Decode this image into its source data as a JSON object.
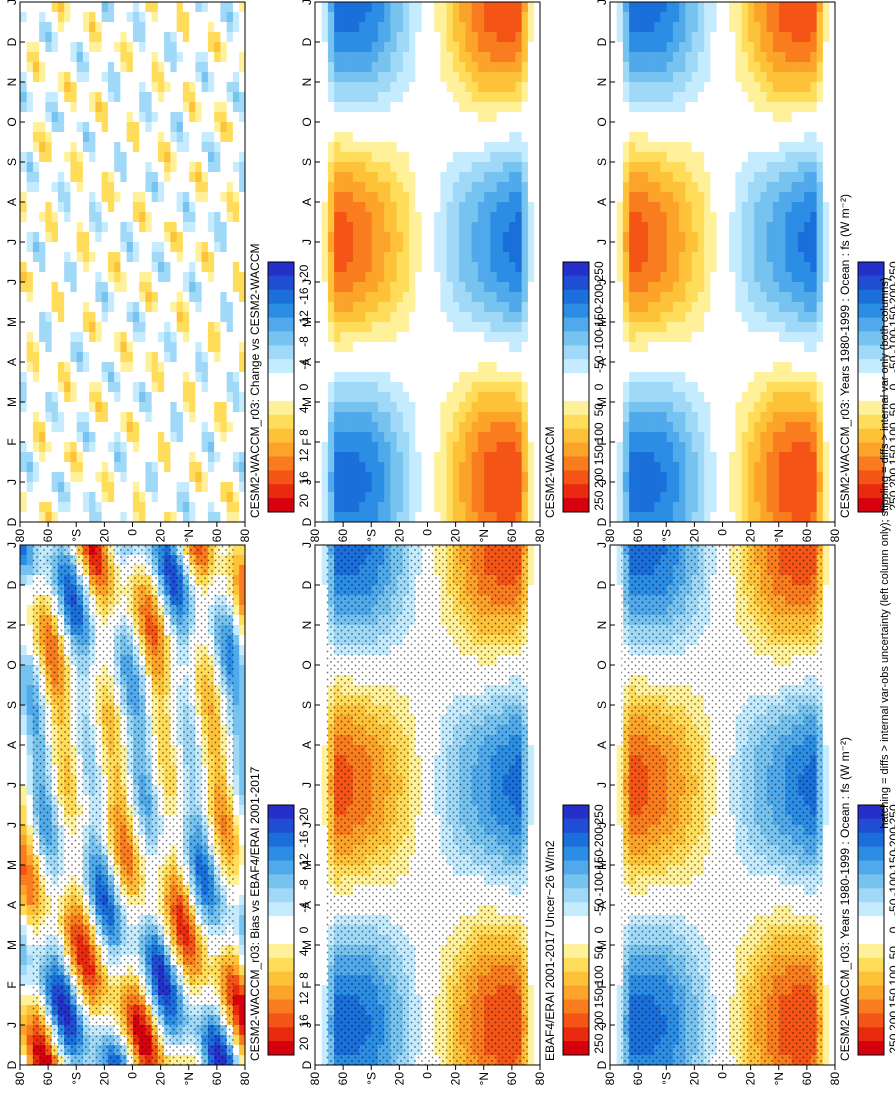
{
  "figure": {
    "rotation": "90-degrees-counterclockwise",
    "footnote": "hatching = diffs > internal var-obs uncertainty (left column only); stippling = diffs > internal var only (both columns)"
  },
  "months": [
    "D",
    "J",
    "F",
    "M",
    "A",
    "M",
    "J",
    "J",
    "A",
    "S",
    "O",
    "N",
    "D",
    "J"
  ],
  "lat_ticks": [
    "80",
    "60",
    "°N",
    "20",
    "0",
    "20",
    "°S",
    "60",
    "80"
  ],
  "colors": {
    "full": [
      "#d7000f",
      "#ea2a0f",
      "#f45516",
      "#f97d1e",
      "#fca329",
      "#fec239",
      "#ffdc5a",
      "#fff09a",
      "#ffffff",
      "#ffffff",
      "#c5ebff",
      "#9fd9f7",
      "#76c3f0",
      "#4fa9ea",
      "#2b8de3",
      "#1b6fdb",
      "#1f4dd4",
      "#2430c9"
    ],
    "diff": [
      "#d7000f",
      "#ea2a0f",
      "#f45516",
      "#f97d1e",
      "#fca329",
      "#fec239",
      "#ffdc5a",
      "#fff09a",
      "#ffffff",
      "#ffffff",
      "#c5ebff",
      "#9fd9f7",
      "#76c3f0",
      "#4fa9ea",
      "#2b8de3",
      "#1b6fdb",
      "#1f4dd4",
      "#2430c9"
    ]
  },
  "colorbar_full": [
    "250",
    "200",
    "150",
    "100",
    "50",
    "0",
    "-50",
    "-100",
    "-150",
    "-200",
    "-250"
  ],
  "colorbar_diff": [
    "20",
    "16",
    "12",
    "8",
    "4",
    "0",
    "-4",
    "-8",
    "-12",
    "-16",
    "-20"
  ],
  "panels": [
    {
      "id": "top-left",
      "title": "CESM2-WACCM_r03: Years 1980-1999 : Ocean : fs (W m⁻²)"
    },
    {
      "id": "top-right",
      "title": "CESM2-WACCM_r03: Years 1980-1999 : Ocean : fs (W m⁻²)"
    },
    {
      "id": "middle-left",
      "title": "EBAF4/ERAI 2001-2017 Uncer~26 W/m2"
    },
    {
      "id": "middle-right",
      "title": "CESM2-WACCM"
    },
    {
      "id": "bottom-left",
      "title": "CESM2-WACCM_r03: Bias vs EBAF4/ERAI 2001-2017"
    },
    {
      "id": "bottom-right",
      "title": "CESM2-WACCM_r03: Change vs CESM2-WACCM"
    }
  ],
  "chart_data": [
    {
      "type": "heatmap",
      "title": "CESM2-WACCM_r03: Years 1980-1999 : Ocean : fs (W m⁻²)",
      "variable": "fs (W m⁻²), ocean, zonal-mean annual cycle",
      "x": [
        "D",
        "J",
        "F",
        "M",
        "A",
        "M",
        "J",
        "J",
        "A",
        "S",
        "O",
        "N",
        "D",
        "J"
      ],
      "y": [
        "80N",
        "60N",
        "40N",
        "20N",
        "0",
        "20S",
        "40S",
        "60S",
        "80S"
      ],
      "clim": [
        -250,
        250
      ],
      "colorbar_ticks": [
        250,
        200,
        150,
        100,
        50,
        0,
        -50,
        -100,
        -150,
        -200,
        -250
      ],
      "peak_values": {
        "north_winter_max": 220,
        "north_summer_min": -170,
        "south_winter_max": 170,
        "south_summer_min": -150
      }
    },
    {
      "type": "heatmap",
      "title": "EBAF4/ERAI 2001-2017 Uncer~26 W/m2",
      "variable": "observed fs (W m⁻²)",
      "x": [
        "D",
        "J",
        "F",
        "M",
        "A",
        "M",
        "J",
        "J",
        "A",
        "S",
        "O",
        "N",
        "D",
        "J"
      ],
      "y": [
        "80N",
        "60N",
        "40N",
        "20N",
        "0",
        "20S",
        "40S",
        "60S",
        "80S"
      ],
      "clim": [
        -250,
        250
      ],
      "colorbar_ticks": [
        250,
        200,
        150,
        100,
        50,
        0,
        -50,
        -100,
        -150,
        -200,
        -250
      ],
      "uncertainty": 26
    },
    {
      "type": "heatmap",
      "title": "CESM2-WACCM_r03: Bias vs EBAF4/ERAI 2001-2017",
      "variable": "bias (W m⁻²)",
      "x": [
        "D",
        "J",
        "F",
        "M",
        "A",
        "M",
        "J",
        "J",
        "A",
        "S",
        "O",
        "N",
        "D",
        "J"
      ],
      "y": [
        "80N",
        "60N",
        "40N",
        "20N",
        "0",
        "20S",
        "40S",
        "60S",
        "80S"
      ],
      "clim": [
        -20,
        20
      ],
      "colorbar_ticks": [
        20,
        16,
        12,
        8,
        4,
        0,
        -4,
        -8,
        -12,
        -16,
        -20
      ]
    },
    {
      "type": "heatmap",
      "title": "CESM2-WACCM",
      "variable": "control fs (W m⁻²)",
      "x": [
        "D",
        "J",
        "F",
        "M",
        "A",
        "M",
        "J",
        "J",
        "A",
        "S",
        "O",
        "N",
        "D",
        "J"
      ],
      "y": [
        "80N",
        "60N",
        "40N",
        "20N",
        "0",
        "20S",
        "40S",
        "60S",
        "80S"
      ],
      "clim": [
        -250,
        250
      ],
      "colorbar_ticks": [
        250,
        200,
        150,
        100,
        50,
        0,
        -50,
        -100,
        -150,
        -200,
        -250
      ]
    },
    {
      "type": "heatmap",
      "title": "CESM2-WACCM_r03: Change vs CESM2-WACCM",
      "variable": "change (W m⁻²)",
      "x": [
        "D",
        "J",
        "F",
        "M",
        "A",
        "M",
        "J",
        "J",
        "A",
        "S",
        "O",
        "N",
        "D",
        "J"
      ],
      "y": [
        "80N",
        "60N",
        "40N",
        "20N",
        "0",
        "20S",
        "40S",
        "60S",
        "80S"
      ],
      "clim": [
        -20,
        20
      ],
      "colorbar_ticks": [
        20,
        16,
        12,
        8,
        4,
        0,
        -4,
        -8,
        -12,
        -16,
        -20
      ]
    }
  ]
}
